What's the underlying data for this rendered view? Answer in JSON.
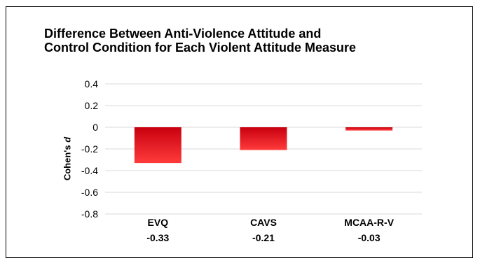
{
  "chart_data": {
    "type": "bar",
    "title_lines": [
      "Difference Between Anti-Violence Attitude and",
      "Control Condition for Each Violent Attitude Measure"
    ],
    "ylabel": "Cohen's d",
    "ylim": [
      -0.8,
      0.4
    ],
    "yticks": [
      "0.4",
      "0.2",
      "0",
      "-0.2",
      "-0.4",
      "-0.6",
      "-0.8"
    ],
    "ytick_values": [
      0.4,
      0.2,
      0,
      -0.2,
      -0.4,
      -0.6,
      -0.8
    ],
    "categories": [
      "EVQ",
      "CAVS",
      "MCAA-R-V"
    ],
    "values": [
      -0.33,
      -0.21,
      -0.03
    ],
    "value_labels": [
      "-0.33",
      "-0.21",
      "-0.03"
    ],
    "grid": true,
    "colors": {
      "bar_top": "#c8000f",
      "bar_bottom": "#ff3b3b",
      "grid": "#d9d9d9"
    }
  }
}
